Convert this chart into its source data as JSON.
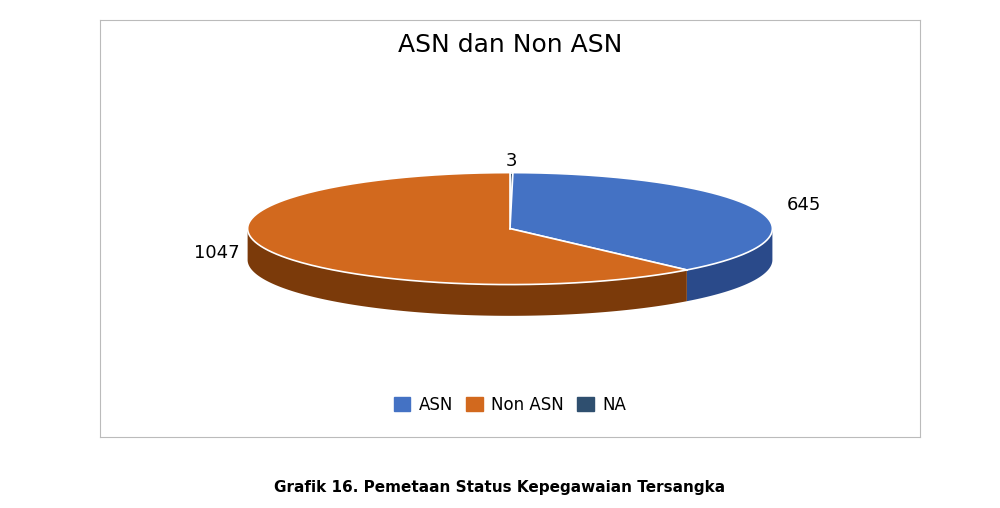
{
  "title": "ASN dan Non ASN",
  "values": [
    645,
    1047,
    3
  ],
  "labels": [
    "ASN",
    "Non ASN",
    "NA"
  ],
  "colors": [
    "#4472C4",
    "#D2691E",
    "#2F4F6F"
  ],
  "dark_colors": [
    "#2A4A8A",
    "#7B3A0A",
    "#1A2F3F"
  ],
  "label_values": [
    "645",
    "1047",
    "3"
  ],
  "caption": "Grafik 16. Pemetaan Status Kepegawaian Tersangka",
  "background_color": "#FFFFFF",
  "title_fontsize": 18,
  "label_fontsize": 13,
  "legend_fontsize": 12,
  "caption_fontsize": 11,
  "ellipse_yscale": 0.42,
  "depth_val": 0.18,
  "startangle_deg": 90
}
